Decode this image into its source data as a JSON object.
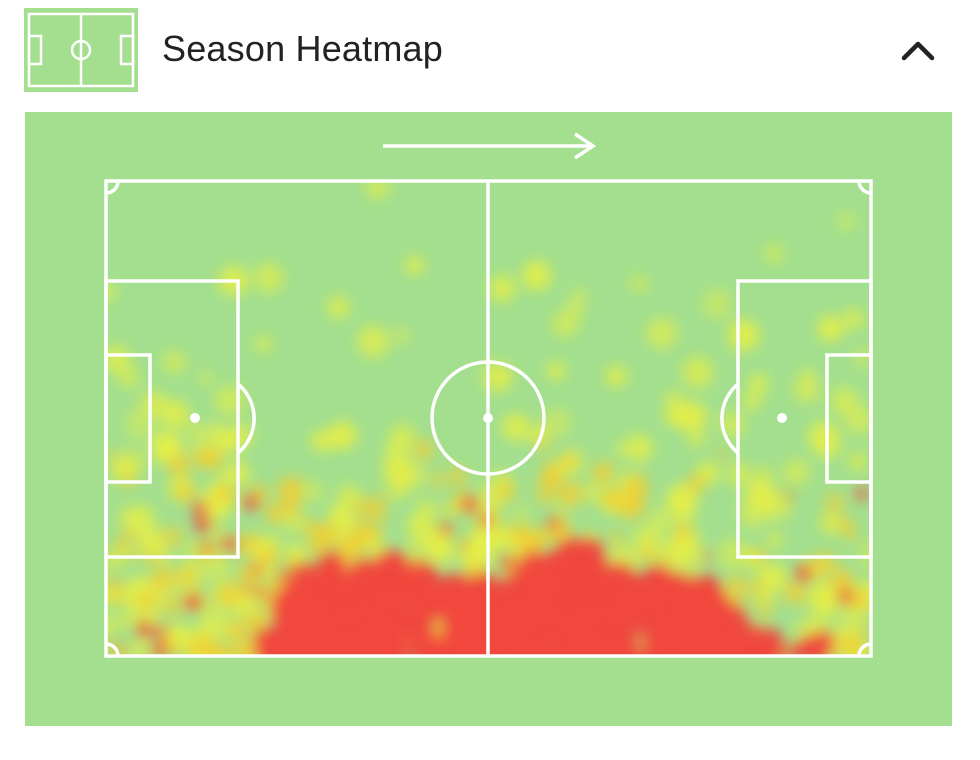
{
  "header": {
    "title": "Season Heatmap",
    "icon": "pitch-icon",
    "toggle_icon": "chevron-up-icon"
  },
  "heatmap": {
    "direction_icon": "arrow-right-icon",
    "attack_direction": "right",
    "colors": {
      "grass": "#a3df8f",
      "lines": "#ffffff",
      "low": "#e5ef47",
      "medium": "#f2cf33",
      "high": "#f0473d"
    }
  }
}
